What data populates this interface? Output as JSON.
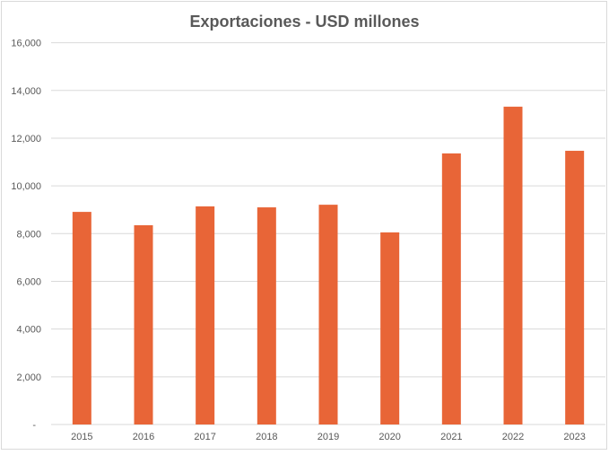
{
  "chart_data": {
    "type": "bar",
    "title": "Exportaciones - USD millones",
    "xlabel": "",
    "ylabel": "",
    "categories": [
      "2015",
      "2016",
      "2017",
      "2018",
      "2019",
      "2020",
      "2021",
      "2022",
      "2023"
    ],
    "values": [
      8910,
      8350,
      9140,
      9100,
      9210,
      8050,
      11360,
      13320,
      11470
    ],
    "ylim": [
      0,
      16000
    ],
    "yticks": [
      0,
      2000,
      4000,
      6000,
      8000,
      10000,
      12000,
      14000,
      16000
    ],
    "ytick_labels": [
      "-",
      "2,000",
      "4,000",
      "6,000",
      "8,000",
      "10,000",
      "12,000",
      "14,000",
      "16,000"
    ],
    "grid": true,
    "legend": "none",
    "bar_color": "#E86537"
  }
}
